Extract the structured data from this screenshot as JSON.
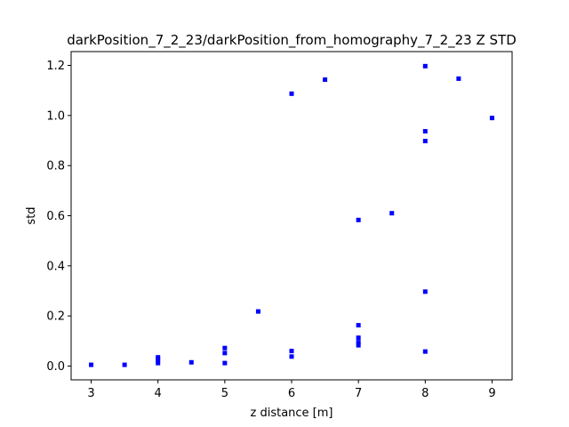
{
  "chart_data": {
    "type": "scatter",
    "title": "darkPosition_7_2_23/darkPosition_from_homography_7_2_23 Z STD",
    "xlabel": "z distance [m]",
    "ylabel": "std",
    "xlim": [
      2.7,
      9.3
    ],
    "ylim": [
      -0.055,
      1.255
    ],
    "xticks": [
      3,
      4,
      5,
      6,
      7,
      8,
      9
    ],
    "yticks": [
      0.0,
      0.2,
      0.4,
      0.6,
      0.8,
      1.0,
      1.2
    ],
    "xtick_labels": [
      "3",
      "4",
      "5",
      "6",
      "7",
      "8",
      "9"
    ],
    "ytick_labels": [
      "0.0",
      "0.2",
      "0.4",
      "0.6",
      "0.8",
      "1.0",
      "1.2"
    ],
    "grid": false,
    "marker_color": "#0000ff",
    "series": [
      {
        "points": [
          {
            "x": 3.0,
            "y": 0.005
          },
          {
            "x": 3.5,
            "y": 0.005
          },
          {
            "x": 4.0,
            "y": 0.012
          },
          {
            "x": 4.0,
            "y": 0.025
          },
          {
            "x": 4.0,
            "y": 0.035
          },
          {
            "x": 4.5,
            "y": 0.015
          },
          {
            "x": 5.0,
            "y": 0.012
          },
          {
            "x": 5.0,
            "y": 0.052
          },
          {
            "x": 5.0,
            "y": 0.072
          },
          {
            "x": 5.5,
            "y": 0.218
          },
          {
            "x": 6.0,
            "y": 0.038
          },
          {
            "x": 6.0,
            "y": 0.06
          },
          {
            "x": 6.0,
            "y": 1.087
          },
          {
            "x": 6.5,
            "y": 1.143
          },
          {
            "x": 7.0,
            "y": 0.083
          },
          {
            "x": 7.0,
            "y": 0.095
          },
          {
            "x": 7.0,
            "y": 0.113
          },
          {
            "x": 7.0,
            "y": 0.163
          },
          {
            "x": 7.0,
            "y": 0.583
          },
          {
            "x": 7.5,
            "y": 0.61
          },
          {
            "x": 8.0,
            "y": 0.058
          },
          {
            "x": 8.0,
            "y": 0.297
          },
          {
            "x": 8.0,
            "y": 0.898
          },
          {
            "x": 8.0,
            "y": 0.937
          },
          {
            "x": 8.0,
            "y": 1.197
          },
          {
            "x": 8.5,
            "y": 1.147
          },
          {
            "x": 9.0,
            "y": 0.99
          }
        ]
      }
    ]
  }
}
